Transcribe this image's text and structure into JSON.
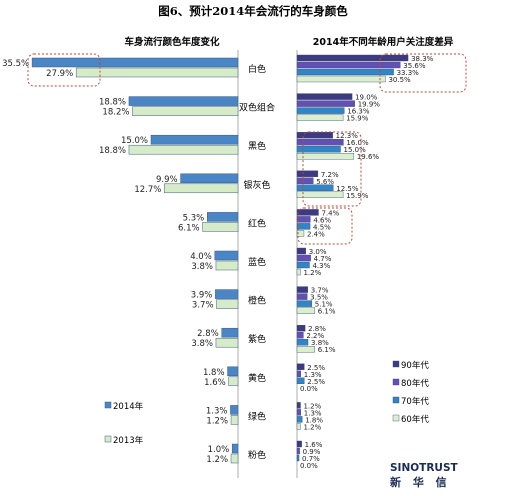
{
  "figure_title": "图6、预计2014年会流行的车身颜色",
  "brand": {
    "name": "SINOTRUST",
    "name_cn": "新 华 信"
  },
  "colors": {
    "y2014": "#4a86c5",
    "y2013": "#d6ecc9",
    "gen90": "#3d3a82",
    "gen80": "#6350b5",
    "gen70": "#2f86c6",
    "gen60": "#d9efd0",
    "highlight": "#b84a3a"
  },
  "chart_data": [
    {
      "type": "bar",
      "orientation": "horizontal",
      "direction": "right-to-left",
      "title": "车身流行颜色年度变化",
      "categories": [
        "白色",
        "双色组合",
        "黑色",
        "银灰色",
        "红色",
        "蓝色",
        "橙色",
        "紫色",
        "黄色",
        "绿色",
        "粉色"
      ],
      "series": [
        {
          "name": "2014年",
          "values": [
            35.5,
            18.8,
            15.0,
            9.9,
            5.3,
            4.0,
            3.9,
            2.8,
            1.8,
            1.3,
            1.0
          ],
          "labels": [
            "35.5%",
            "18.8%",
            "15.0%",
            "9.9%",
            "5.3%",
            "4.0%",
            "3.9%",
            "2.8%",
            "1.8%",
            "1.3%",
            "1.0%"
          ]
        },
        {
          "name": "2013年",
          "values": [
            27.9,
            18.2,
            18.8,
            12.7,
            6.1,
            3.8,
            3.7,
            3.8,
            1.6,
            1.2,
            1.2
          ],
          "labels": [
            "27.9%",
            "18.2%",
            "18.8%",
            "12.7%",
            "6.1%",
            "3.8%",
            "3.7%",
            "3.8%",
            "1.6%",
            "1.2%",
            "1.2%"
          ]
        }
      ],
      "legend_position": "bottom-left",
      "grid": false
    },
    {
      "type": "bar",
      "orientation": "horizontal",
      "direction": "left-to-right",
      "title": "2014年不同年龄用户关注度差异",
      "categories": [
        "白色",
        "双色组合",
        "黑色",
        "银灰色",
        "红色",
        "蓝色",
        "橙色",
        "紫色",
        "黄色",
        "绿色",
        "粉色"
      ],
      "series": [
        {
          "name": "90年代",
          "values": [
            38.3,
            19.0,
            12.3,
            7.2,
            7.4,
            3.0,
            3.7,
            2.8,
            2.5,
            1.2,
            1.6
          ],
          "labels": [
            "38.3%",
            "19.0%",
            "12.3%",
            "7.2%",
            "7.4%",
            "3.0%",
            "3.7%",
            "2.8%",
            "2.5%",
            "1.2%",
            "1.6%"
          ]
        },
        {
          "name": "80年代",
          "values": [
            35.6,
            19.9,
            16.0,
            5.6,
            4.6,
            4.7,
            3.5,
            2.2,
            1.3,
            1.3,
            0.9
          ],
          "labels": [
            "35.6%",
            "19.9%",
            "16.0%",
            "5.6%",
            "4.6%",
            "4.7%",
            "3.5%",
            "2.2%",
            "1.3%",
            "1.3%",
            "0.9%"
          ]
        },
        {
          "name": "70年代",
          "values": [
            33.3,
            16.3,
            15.0,
            12.5,
            4.5,
            4.3,
            5.1,
            3.8,
            2.5,
            1.8,
            0.7
          ],
          "labels": [
            "33.3%",
            "16.3%",
            "15.0%",
            "12.5%",
            "4.5%",
            "4.3%",
            "5.1%",
            "3.8%",
            "2.5%",
            "1.8%",
            "0.7%"
          ]
        },
        {
          "name": "60年代",
          "values": [
            30.5,
            15.9,
            19.6,
            15.9,
            2.4,
            1.2,
            6.1,
            6.1,
            0.0,
            1.2,
            0.0
          ],
          "labels": [
            "30.5%",
            "15.9%",
            "19.6%",
            "15.9%",
            "2.4%",
            "1.2%",
            "6.1%",
            "6.1%",
            "0.0%",
            "1.2%",
            "0.0%"
          ]
        }
      ],
      "legend_position": "bottom-right",
      "grid": false
    }
  ]
}
